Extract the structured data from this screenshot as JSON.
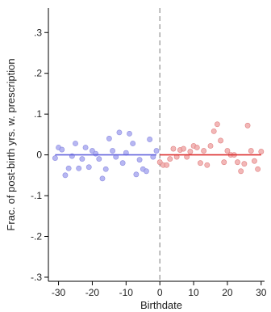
{
  "chart_data": {
    "type": "scatter",
    "xlabel": "Birthdate",
    "ylabel": "Frac. of post-birth yrs. w. prescription",
    "xlim": [
      -33,
      31
    ],
    "ylim": [
      -0.31,
      0.36
    ],
    "x_ticks": [
      -30,
      -20,
      -10,
      0,
      10,
      20,
      30
    ],
    "x_tick_labels": [
      "-30",
      "-20",
      "-10",
      "0",
      "10",
      "20",
      "30"
    ],
    "y_ticks": [
      -0.3,
      -0.2,
      -0.1,
      0,
      0.1,
      0.2,
      0.3
    ],
    "y_tick_labels": [
      "-.3",
      "-.2",
      "-.1",
      "0",
      ".1",
      ".2",
      ".3"
    ],
    "cutoff_x": 0,
    "cutoff_style": "dashed vertical line",
    "grid": false,
    "legend": "none",
    "series": [
      {
        "color": "#aaaaf0",
        "edge": "#8c8ce0",
        "points": [
          {
            "x": -31,
            "y": -0.008
          },
          {
            "x": -30,
            "y": 0.018
          },
          {
            "x": -29,
            "y": 0.013
          },
          {
            "x": -28,
            "y": -0.05
          },
          {
            "x": -27,
            "y": -0.033
          },
          {
            "x": -26,
            "y": -0.003
          },
          {
            "x": -25,
            "y": 0.028
          },
          {
            "x": -24,
            "y": -0.033
          },
          {
            "x": -23,
            "y": -0.01
          },
          {
            "x": -22,
            "y": 0.018
          },
          {
            "x": -21,
            "y": -0.03
          },
          {
            "x": -20,
            "y": 0.01
          },
          {
            "x": -19,
            "y": 0.003
          },
          {
            "x": -18,
            "y": -0.01
          },
          {
            "x": -17,
            "y": -0.058
          },
          {
            "x": -16,
            "y": -0.035
          },
          {
            "x": -15,
            "y": 0.04
          },
          {
            "x": -14,
            "y": 0.01
          },
          {
            "x": -13,
            "y": -0.005
          },
          {
            "x": -12,
            "y": 0.055
          },
          {
            "x": -11,
            "y": -0.02
          },
          {
            "x": -10,
            "y": 0.005
          },
          {
            "x": -9,
            "y": 0.052
          },
          {
            "x": -8,
            "y": 0.028
          },
          {
            "x": -7,
            "y": -0.048
          },
          {
            "x": -6,
            "y": -0.012
          },
          {
            "x": -5,
            "y": -0.035
          },
          {
            "x": -4,
            "y": -0.04
          },
          {
            "x": -3,
            "y": 0.038
          },
          {
            "x": -2,
            "y": -0.005
          },
          {
            "x": -1,
            "y": 0.01
          }
        ],
        "fit": {
          "x": [
            -31,
            -1
          ],
          "y": [
            0.0,
            0.0
          ]
        }
      },
      {
        "color": "#f0aaaa",
        "edge": "#e08080",
        "points": [
          {
            "x": 0,
            "y": -0.018
          },
          {
            "x": 1,
            "y": -0.025
          },
          {
            "x": 2,
            "y": -0.025
          },
          {
            "x": 3,
            "y": -0.01
          },
          {
            "x": 4,
            "y": 0.015
          },
          {
            "x": 5,
            "y": -0.005
          },
          {
            "x": 6,
            "y": 0.012
          },
          {
            "x": 7,
            "y": 0.015
          },
          {
            "x": 8,
            "y": -0.005
          },
          {
            "x": 9,
            "y": 0.008
          },
          {
            "x": 10,
            "y": 0.022
          },
          {
            "x": 11,
            "y": 0.018
          },
          {
            "x": 12,
            "y": -0.02
          },
          {
            "x": 13,
            "y": 0.01
          },
          {
            "x": 14,
            "y": -0.025
          },
          {
            "x": 15,
            "y": 0.022
          },
          {
            "x": 16,
            "y": 0.058
          },
          {
            "x": 17,
            "y": 0.075
          },
          {
            "x": 18,
            "y": 0.035
          },
          {
            "x": 19,
            "y": -0.018
          },
          {
            "x": 20,
            "y": 0.01
          },
          {
            "x": 21,
            "y": 0.0
          },
          {
            "x": 22,
            "y": 0.0
          },
          {
            "x": 23,
            "y": -0.018
          },
          {
            "x": 24,
            "y": -0.04
          },
          {
            "x": 25,
            "y": -0.022
          },
          {
            "x": 26,
            "y": 0.072
          },
          {
            "x": 27,
            "y": 0.01
          },
          {
            "x": 28,
            "y": -0.015
          },
          {
            "x": 29,
            "y": -0.035
          },
          {
            "x": 30,
            "y": 0.008
          }
        ],
        "fit": {
          "x": [
            0,
            30
          ],
          "y": [
            0.0,
            0.0
          ]
        }
      }
    ],
    "fit_colors": [
      "#6666dd",
      "#dd3333"
    ]
  }
}
